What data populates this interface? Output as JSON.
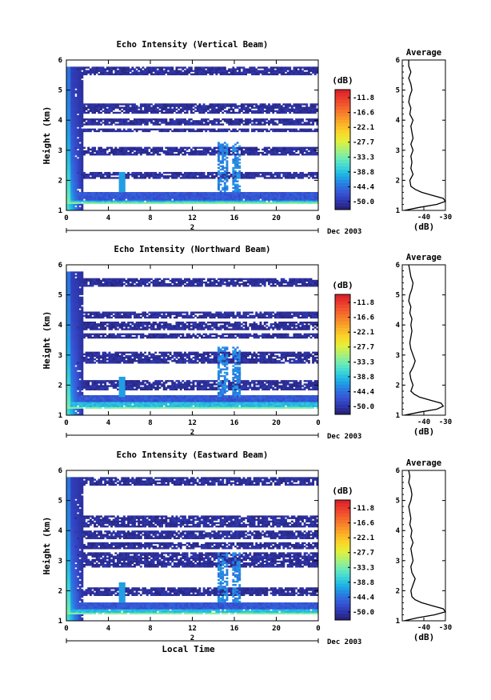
{
  "chart_data": [
    {
      "type": "heatmap",
      "title": "Echo Intensity (Vertical Beam)",
      "ylabel": "Height (km)",
      "ylim": [
        1,
        6
      ],
      "xlim": [
        0,
        24
      ],
      "x_ticks": [
        "0",
        "4",
        "8",
        "12",
        "16",
        "20",
        "0"
      ],
      "y_ticks": [
        "1",
        "2",
        "3",
        "4",
        "5",
        "6"
      ],
      "date_day": "2",
      "date_label": "Dec 2003",
      "colorbar": {
        "unit": "(dB)",
        "levels": [
          "-11.8",
          "-16.6",
          "-22.1",
          "-27.7",
          "-33.3",
          "-38.8",
          "-44.4",
          "-50.0"
        ]
      },
      "layers": [
        {
          "bottom": 1.2,
          "top": 1.25,
          "level": -33
        },
        {
          "bottom": 1.25,
          "top": 1.35,
          "level": -39
        },
        {
          "bottom": 1.35,
          "top": 1.62,
          "level": -46
        },
        {
          "bottom": 2.05,
          "top": 2.3,
          "level": -50
        },
        {
          "bottom": 2.85,
          "top": 3.12,
          "level": -50
        },
        {
          "bottom": 3.6,
          "top": 3.72,
          "level": -50
        },
        {
          "bottom": 3.85,
          "top": 4.05,
          "level": -50
        },
        {
          "bottom": 4.2,
          "top": 4.55,
          "level": -50
        },
        {
          "bottom": 5.5,
          "top": 5.8,
          "level": -50
        }
      ],
      "profile": {
        "xlabel": "(dB)",
        "title": "Average",
        "x_ticks": [
          "-40",
          "-30"
        ],
        "xlim": [
          -50,
          -30
        ],
        "height": [
          1.0,
          1.1,
          1.2,
          1.3,
          1.4,
          1.5,
          1.6,
          1.7,
          1.8,
          2.0,
          2.2,
          2.4,
          2.6,
          2.8,
          3.0,
          3.2,
          3.4,
          3.6,
          3.8,
          4.0,
          4.2,
          4.4,
          4.6,
          4.8,
          5.0,
          5.2,
          5.4,
          5.6,
          5.8,
          6.0
        ],
        "value": [
          -49,
          -42,
          -34,
          -30,
          -31,
          -36,
          -41,
          -44,
          -46,
          -46.5,
          -45,
          -46,
          -45.5,
          -46,
          -45,
          -46,
          -45,
          -45.5,
          -46,
          -45,
          -46.5,
          -46,
          -47,
          -46.5,
          -45.5,
          -46,
          -47,
          -46,
          -47,
          -47
        ]
      }
    },
    {
      "type": "heatmap",
      "title": "Echo Intensity (Northward Beam)",
      "ylabel": "Height (km)",
      "ylim": [
        1,
        6
      ],
      "xlim": [
        0,
        24
      ],
      "x_ticks": [
        "0",
        "4",
        "8",
        "12",
        "16",
        "20",
        "0"
      ],
      "y_ticks": [
        "1",
        "2",
        "3",
        "4",
        "5",
        "6"
      ],
      "date_day": "2",
      "date_label": "Dec 2003",
      "colorbar": {
        "unit": "(dB)",
        "levels": [
          "-11.8",
          "-16.6",
          "-22.1",
          "-27.7",
          "-33.3",
          "-38.8",
          "-44.4",
          "-50.0"
        ]
      },
      "layers": [
        {
          "bottom": 1.22,
          "top": 1.3,
          "level": -33
        },
        {
          "bottom": 1.3,
          "top": 1.45,
          "level": -39
        },
        {
          "bottom": 1.45,
          "top": 1.65,
          "level": -46
        },
        {
          "bottom": 1.85,
          "top": 2.15,
          "level": -50
        },
        {
          "bottom": 2.75,
          "top": 3.12,
          "level": -50
        },
        {
          "bottom": 3.55,
          "top": 3.72,
          "level": -50
        },
        {
          "bottom": 3.85,
          "top": 4.1,
          "level": -50
        },
        {
          "bottom": 4.25,
          "top": 4.45,
          "level": -50
        },
        {
          "bottom": 5.3,
          "top": 5.55,
          "level": -50
        }
      ],
      "profile": {
        "xlabel": "(dB)",
        "title": "Average",
        "x_ticks": [
          "-40",
          "-30"
        ],
        "xlim": [
          -50,
          -30
        ],
        "height": [
          1.0,
          1.1,
          1.2,
          1.3,
          1.4,
          1.5,
          1.6,
          1.7,
          1.8,
          2.0,
          2.2,
          2.4,
          2.6,
          2.8,
          3.0,
          3.2,
          3.4,
          3.6,
          3.8,
          4.0,
          4.2,
          4.4,
          4.6,
          4.8,
          5.0,
          5.2,
          5.4,
          5.6,
          5.8,
          6.0
        ],
        "value": [
          -49,
          -42,
          -34,
          -31,
          -32,
          -37,
          -42,
          -44.5,
          -46,
          -45,
          -46,
          -46.5,
          -45,
          -44,
          -45,
          -46,
          -46.5,
          -46,
          -45.5,
          -46,
          -45.5,
          -46.5,
          -46,
          -47,
          -46.5,
          -45.5,
          -45,
          -46,
          -46.5,
          -47
        ]
      }
    },
    {
      "type": "heatmap",
      "title": "Echo Intensity (Eastward Beam)",
      "ylabel": "Height (km)",
      "ylim": [
        1,
        6
      ],
      "xlim": [
        0,
        24
      ],
      "x_ticks": [
        "0",
        "4",
        "8",
        "12",
        "16",
        "20",
        "0"
      ],
      "y_ticks": [
        "1",
        "2",
        "3",
        "4",
        "5",
        "6"
      ],
      "date_day": "2",
      "date_label": "Dec 2003",
      "xlabel": "Local Time",
      "colorbar": {
        "unit": "(dB)",
        "levels": [
          "-11.8",
          "-16.6",
          "-22.1",
          "-27.7",
          "-33.3",
          "-38.8",
          "-44.4",
          "-50.0"
        ]
      },
      "layers": [
        {
          "bottom": 1.2,
          "top": 1.27,
          "level": -33
        },
        {
          "bottom": 1.27,
          "top": 1.4,
          "level": -39
        },
        {
          "bottom": 1.4,
          "top": 1.62,
          "level": -46
        },
        {
          "bottom": 1.85,
          "top": 2.1,
          "level": -50
        },
        {
          "bottom": 2.8,
          "top": 3.25,
          "level": -50
        },
        {
          "bottom": 3.4,
          "top": 3.6,
          "level": -50
        },
        {
          "bottom": 3.7,
          "top": 4.0,
          "level": -50
        },
        {
          "bottom": 4.1,
          "top": 4.5,
          "level": -50
        },
        {
          "bottom": 5.5,
          "top": 5.8,
          "level": -50
        }
      ],
      "profile": {
        "xlabel": "(dB)",
        "title": "Average",
        "x_ticks": [
          "-40",
          "-30"
        ],
        "xlim": [
          -50,
          -30
        ],
        "height": [
          1.0,
          1.1,
          1.2,
          1.3,
          1.4,
          1.5,
          1.6,
          1.7,
          1.8,
          2.0,
          2.2,
          2.4,
          2.6,
          2.8,
          3.0,
          3.2,
          3.4,
          3.6,
          3.8,
          4.0,
          4.2,
          4.4,
          4.6,
          4.8,
          5.0,
          5.2,
          5.4,
          5.6,
          5.8,
          6.0
        ],
        "value": [
          -49,
          -43,
          -35,
          -30,
          -31,
          -36,
          -41,
          -44,
          -45.5,
          -46,
          -45,
          -44,
          -45.5,
          -46,
          -45,
          -45.5,
          -46,
          -45,
          -46,
          -45.5,
          -46.5,
          -46,
          -46.5,
          -47,
          -46,
          -45.5,
          -46,
          -47,
          -46.5,
          -47
        ]
      }
    }
  ]
}
